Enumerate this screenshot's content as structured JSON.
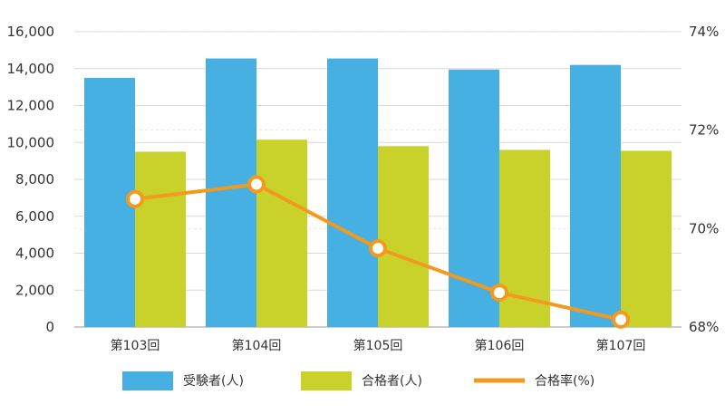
{
  "chart_data": {
    "type": "bar",
    "categories": [
      "第103回",
      "第104回",
      "第105回",
      "第106回",
      "第107回"
    ],
    "series": [
      {
        "name": "受験者(人)",
        "type": "bar",
        "axis": "left",
        "color": "#46b0e3",
        "values": [
          13500,
          14550,
          14550,
          13950,
          14200
        ]
      },
      {
        "name": "合格者(人)",
        "type": "bar",
        "axis": "left",
        "color": "#c9d22b",
        "values": [
          9500,
          10150,
          9800,
          9600,
          9550
        ]
      },
      {
        "name": "合格率(%)",
        "type": "line",
        "axis": "right",
        "color": "#f39a1e",
        "values": [
          70.6,
          70.9,
          69.6,
          68.7,
          68.15
        ]
      }
    ],
    "y_left": {
      "min": 0,
      "max": 16000,
      "ticks": [
        "0",
        "2,000",
        "4,000",
        "6,000",
        "8,000",
        "10,000",
        "12,000",
        "14,000",
        "16,000"
      ]
    },
    "y_right": {
      "min": 68,
      "max": 74,
      "ticks": [
        "68%",
        "70%",
        "72%",
        "74%"
      ]
    },
    "grid": true,
    "legend_position": "bottom",
    "title": "",
    "xlabel": "",
    "ylabel": ""
  }
}
